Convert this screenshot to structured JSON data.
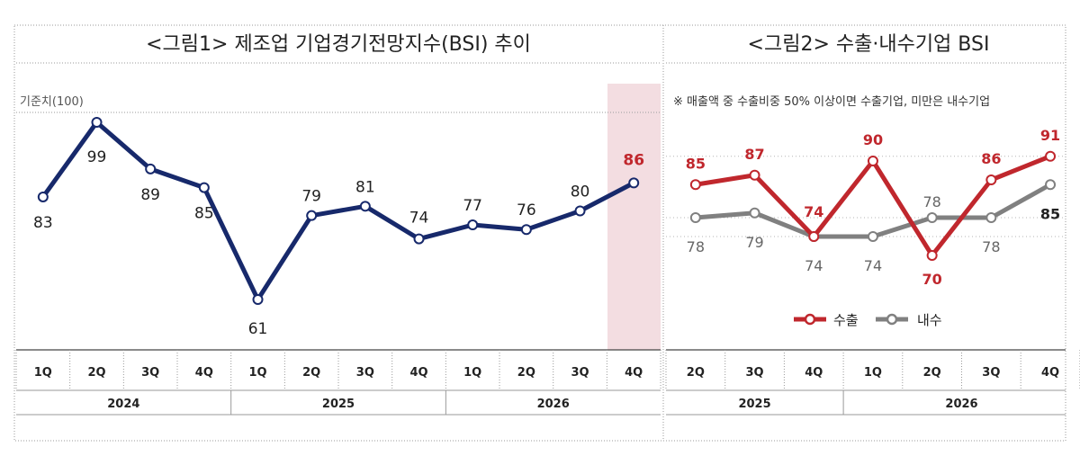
{
  "colors": {
    "primary_line": "#17296b",
    "export": "#c0272d",
    "domestic": "#808080",
    "highlight_band": "#f3dde1",
    "grid": "#b5b5b5",
    "text": "#222222"
  },
  "panel1": {
    "title": "<그림1> 제조업 기업경기전망지수(BSI) 추이",
    "baseline_label": "기준치(100)",
    "years": [
      "2024",
      "2025",
      "2026"
    ]
  },
  "panel2": {
    "title": "<그림2> 수출·내수기업 BSI",
    "note": "※ 매출액 중 수출비중 50% 이상이면 수출기업, 미만은 내수기업",
    "legend": [
      "수출",
      "내수"
    ],
    "years": [
      "2025",
      "2026"
    ]
  },
  "chart_data": [
    {
      "type": "line",
      "title": "<그림1> 제조업 기업경기전망지수(BSI) 추이",
      "categories": [
        "1Q",
        "2Q",
        "3Q",
        "4Q",
        "1Q",
        "2Q",
        "3Q",
        "4Q",
        "1Q",
        "2Q",
        "3Q",
        "4Q"
      ],
      "groups": [
        {
          "label": "2024",
          "count": 4
        },
        {
          "label": "2025",
          "count": 4
        },
        {
          "label": "2026",
          "count": 4
        }
      ],
      "series": [
        {
          "values": [
            83,
            99,
            89,
            85,
            61,
            79,
            81,
            74,
            77,
            76,
            80,
            86
          ]
        }
      ],
      "reference_line": 100,
      "highlight_index": 11,
      "ylim": [
        55,
        105
      ]
    },
    {
      "type": "line",
      "title": "<그림2> 수출·내수기업 BSI",
      "categories": [
        "2Q",
        "3Q",
        "4Q",
        "1Q",
        "2Q",
        "3Q",
        "4Q"
      ],
      "groups": [
        {
          "label": "2025",
          "count": 3
        },
        {
          "label": "2026",
          "count": 4
        }
      ],
      "series": [
        {
          "name": "수출",
          "values": [
            85,
            87,
            74,
            90,
            70,
            86,
            91
          ]
        },
        {
          "name": "내수",
          "values": [
            78,
            79,
            74,
            74,
            78,
            78,
            85
          ]
        }
      ],
      "legend_position": "bottom-center",
      "ylim": [
        65,
        95
      ]
    }
  ]
}
